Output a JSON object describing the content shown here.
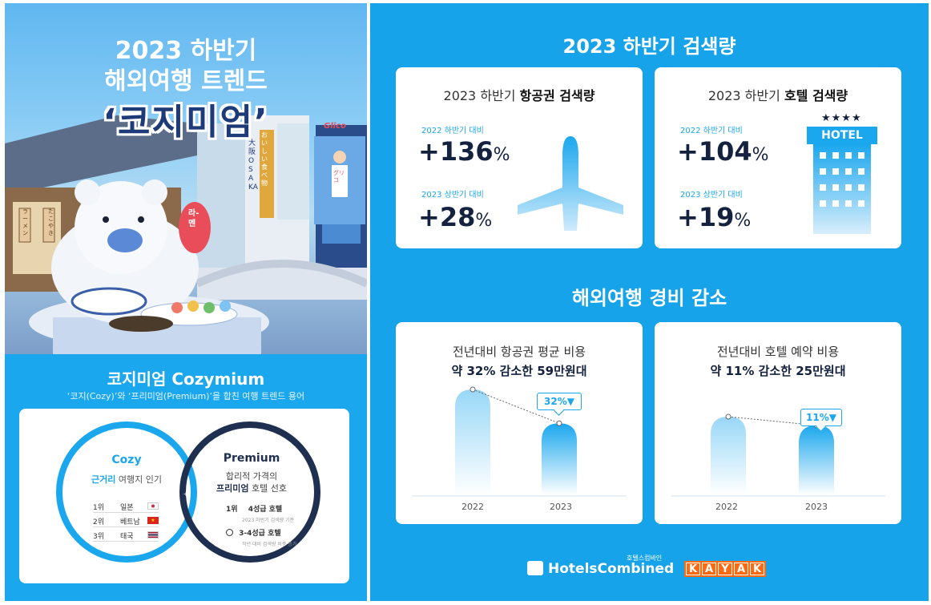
{
  "left": {
    "hero": {
      "title_line1": "2023 하반기",
      "title_line2": "해외여행 트렌드",
      "title_line3": "‘코지미엄’",
      "signs": {
        "ramen_lantern": "라-멘",
        "osaka_sign": "大阪 OSAKA",
        "glico": "Glico",
        "runner_shirt": "グリコ",
        "shop_sign": "たこやき",
        "shop_sign2": "ラーメン",
        "shop_banner": "おいしい食べ物"
      }
    },
    "cozymium": {
      "title": "코지미엄 Cozymium",
      "subtitle": "‘코지(Cozy)’와 ‘프리미엄(Premium)’을 합친 여행 트렌드 용어",
      "plus": "+",
      "cozy": {
        "heading": "Cozy",
        "desc_bold": "근거리",
        "desc_rest": " 여행지 인기",
        "ranks": [
          {
            "rank": "1위",
            "name": "일본",
            "flag": "jp"
          },
          {
            "rank": "2위",
            "name": "베트남",
            "flag": "vn"
          },
          {
            "rank": "3위",
            "name": "태국",
            "flag": "th"
          }
        ]
      },
      "premium": {
        "heading": "Premium",
        "desc_line1": "합리적 가격의",
        "desc_bold": "프리미엄",
        "desc_rest": " 호텔 선호",
        "row1_rank": "1위",
        "row1_label": "4성급 호텔",
        "row1_note": "2023 하반기 검색량 기준",
        "row2_label": "3-4성급 호텔",
        "row2_note": "작년 대비 검색량 비중 증가"
      }
    }
  },
  "right": {
    "section1_title": "2023 하반기 검색량",
    "flight_card": {
      "title_plain": "2023 하반기 ",
      "title_bold": "항공권 검색량",
      "label1": "2022 하반기 대비",
      "value1": "+136",
      "label2": "2023 상반기 대비",
      "value2": "+28",
      "unit": "%"
    },
    "hotel_card": {
      "title_plain": "2023 하반기 ",
      "title_bold": "호텔 검색량",
      "label1": "2022 하반기 대비",
      "value1": "+104",
      "label2": "2023 상반기 대비",
      "value2": "+19",
      "unit": "%",
      "hotel_sign": "HOTEL",
      "stars": "★★★★"
    },
    "section2_title": "해외여행 경비 감소",
    "flight_cost": {
      "title": "전년대비 항공권 평균 비용",
      "subtitle": "약 32% 감소한 59만원대",
      "tag": "32%▼",
      "x": [
        "2022",
        "2023"
      ],
      "values": [
        1.0,
        0.68
      ]
    },
    "hotel_cost": {
      "title": "전년대비 호텔 예약 비용",
      "subtitle": "약 11% 감소한 25만원대",
      "tag": "11%▼",
      "x": [
        "2022",
        "2023"
      ],
      "values": [
        1.0,
        0.89
      ]
    },
    "logos": {
      "hc_small": "호텔스컴바인",
      "hc_main": "HotelsCombined",
      "kayak": [
        "K",
        "A",
        "Y",
        "A",
        "K"
      ]
    }
  },
  "colors": {
    "primary_blue": "#1aa7ee",
    "navy": "#14223f",
    "kayak_orange": "#ff690f"
  }
}
